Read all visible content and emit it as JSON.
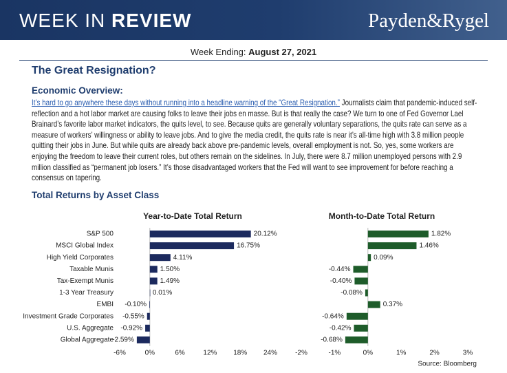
{
  "header": {
    "title_light": "WEEK IN",
    "title_bold": "REVIEW",
    "brand": "Payden&Rygel"
  },
  "week_ending": {
    "label": "Week Ending:",
    "date": "August 27, 2021"
  },
  "title": "The Great Resignation?",
  "section": "Economic Overview:",
  "paragraph": {
    "link": "It’s hard to go anywhere these days without running into a headline warning of the “Great Resignation.”",
    "text": " Journalists claim that pandemic-induced self-reflection and a hot labor market are causing folks to leave their jobs en masse. But is that really the case? We turn to one of Fed Governor Lael Brainard’s favorite labor market indicators, the quits level, to see. Because quits are generally voluntary separations, the quits rate can serve as a measure of workers’ willingness or ability to leave jobs. And to give the media credit, the quits rate is near it’s all-time high with 3.8 million people quitting their jobs in June. But while quits are already back above pre-pandemic levels, overall employment is not. So, yes, some workers are enjoying the freedom to leave their current roles, but others remain on the sidelines. In July, there were 8.7 million unemployed persons with 2.9 million classified as “permanent job losers.” It’s those disadvantaged workers that the Fed will want to see improvement for before reaching a consensus on tapering."
  },
  "charts_heading": "Total Returns by Asset Class",
  "source": "Source: Bloomberg",
  "chart_data": [
    {
      "type": "bar",
      "orientation": "horizontal",
      "title": "Year-to-Date Total Return",
      "color": "#1c2a5e",
      "categories": [
        "S&P 500",
        "MSCI Global Index",
        "High Yield Corporates",
        "Taxable Munis",
        "Tax-Exempt Munis",
        "1-3 Year Treasury",
        "EMBI",
        "Investment Grade Corporates",
        "U.S. Aggregate",
        "Global Aggregate"
      ],
      "values": [
        20.12,
        16.75,
        4.11,
        1.5,
        1.49,
        0.01,
        -0.1,
        -0.55,
        -0.92,
        -2.59
      ],
      "value_labels": [
        "20.12%",
        "16.75%",
        "4.11%",
        "1.50%",
        "1.49%",
        "0.01%",
        "-0.10%",
        "-0.55%",
        "-0.92%",
        "-2.59%"
      ],
      "xlim": [
        -6,
        24
      ],
      "xticks": [
        {
          "value": -6,
          "label": "-6%"
        },
        {
          "value": 0,
          "label": "0%"
        },
        {
          "value": 6,
          "label": "6%"
        },
        {
          "value": 12,
          "label": "12%"
        },
        {
          "value": 18,
          "label": "18%"
        },
        {
          "value": 24,
          "label": "24%"
        }
      ]
    },
    {
      "type": "bar",
      "orientation": "horizontal",
      "title": "Month-to-Date Total Return",
      "color": "#1e5c2a",
      "values": [
        1.82,
        1.46,
        0.09,
        -0.44,
        -0.4,
        -0.08,
        0.37,
        -0.64,
        -0.42,
        -0.68
      ],
      "value_labels": [
        "1.82%",
        "1.46%",
        "0.09%",
        "-0.44%",
        "-0.40%",
        "-0.08%",
        "0.37%",
        "-0.64%",
        "-0.42%",
        "-0.68%"
      ],
      "xlim": [
        -2,
        3
      ],
      "xticks": [
        {
          "value": -2,
          "label": "-2%"
        },
        {
          "value": -1,
          "label": "-1%"
        },
        {
          "value": 0,
          "label": "0%"
        },
        {
          "value": 1,
          "label": "1%"
        },
        {
          "value": 2,
          "label": "2%"
        },
        {
          "value": 3,
          "label": "3%"
        }
      ]
    }
  ]
}
